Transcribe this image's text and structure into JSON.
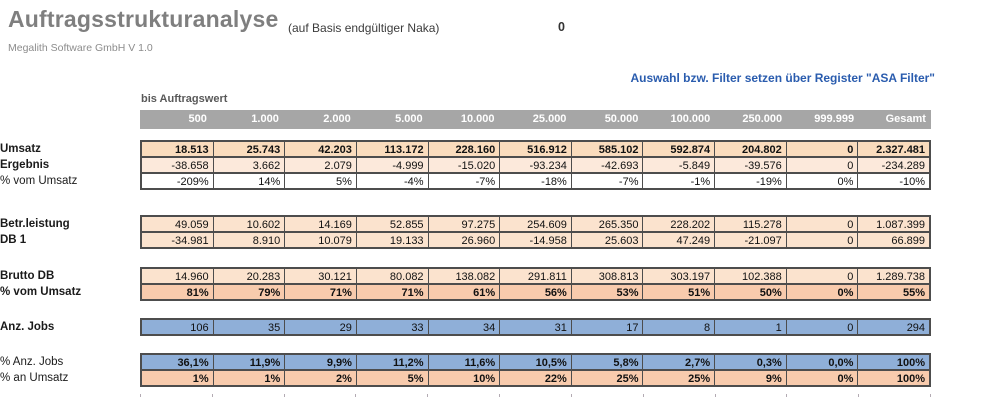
{
  "header": {
    "title": "Auftragsstrukturanalyse",
    "version_line": "Megalith Software GmbH V 1.0",
    "basis_note": "(auf Basis endgültiger Naka)",
    "basis_value": "0",
    "filter_hint": "Auswahl bzw. Filter setzen über Register \"ASA Filter\""
  },
  "colors": {
    "header_band": "#a6a6a6",
    "peach_strong": "#fadcbd",
    "peach": "#fbe3ce",
    "orange": "#f8cbad",
    "blue": "#8fafd8",
    "hint_blue": "#2a5cae",
    "border": "#4d4d4d"
  },
  "table": {
    "axis_label": "bis Auftragswert",
    "columns": [
      "500",
      "1.000",
      "2.000",
      "5.000",
      "10.000",
      "25.000",
      "50.000",
      "100.000",
      "250.000",
      "999.999",
      "Gesamt"
    ],
    "rows": [
      {
        "label": "Umsatz",
        "values": [
          "18.513",
          "25.743",
          "42.203",
          "113.172",
          "228.160",
          "516.912",
          "585.102",
          "592.874",
          "204.802",
          "0",
          "2.327.481"
        ]
      },
      {
        "label": "Ergebnis",
        "values": [
          "-38.658",
          "3.662",
          "2.079",
          "-4.999",
          "-15.020",
          "-93.234",
          "-42.693",
          "-5.849",
          "-39.576",
          "0",
          "-234.289"
        ]
      },
      {
        "label": "% vom Umsatz",
        "values": [
          "-209%",
          "14%",
          "5%",
          "-4%",
          "-7%",
          "-18%",
          "-7%",
          "-1%",
          "-19%",
          "0%",
          "-10%"
        ]
      },
      {
        "label": "Betr.leistung",
        "values": [
          "49.059",
          "10.602",
          "14.169",
          "52.855",
          "97.275",
          "254.609",
          "265.350",
          "228.202",
          "115.278",
          "0",
          "1.087.399"
        ]
      },
      {
        "label": "DB 1",
        "values": [
          "-34.981",
          "8.910",
          "10.079",
          "19.133",
          "26.960",
          "-14.958",
          "25.603",
          "47.249",
          "-21.097",
          "0",
          "66.899"
        ]
      },
      {
        "label": "Brutto DB",
        "values": [
          "14.960",
          "20.283",
          "30.121",
          "80.082",
          "138.082",
          "291.811",
          "308.813",
          "303.197",
          "102.388",
          "0",
          "1.289.738"
        ]
      },
      {
        "label": "% vom Umsatz",
        "values": [
          "81%",
          "79%",
          "71%",
          "71%",
          "61%",
          "56%",
          "53%",
          "51%",
          "50%",
          "0%",
          "55%"
        ]
      },
      {
        "label": "Anz. Jobs",
        "values": [
          "106",
          "35",
          "29",
          "33",
          "34",
          "31",
          "17",
          "8",
          "1",
          "0",
          "294"
        ]
      },
      {
        "label": "% Anz. Jobs",
        "values": [
          "36,1%",
          "11,9%",
          "9,9%",
          "11,2%",
          "11,6%",
          "10,5%",
          "5,8%",
          "2,7%",
          "0,3%",
          "0,0%",
          "100%"
        ]
      },
      {
        "label": "% an Umsatz",
        "values": [
          "1%",
          "1%",
          "2%",
          "5%",
          "10%",
          "22%",
          "25%",
          "25%",
          "9%",
          "0%",
          "100%"
        ]
      }
    ]
  }
}
